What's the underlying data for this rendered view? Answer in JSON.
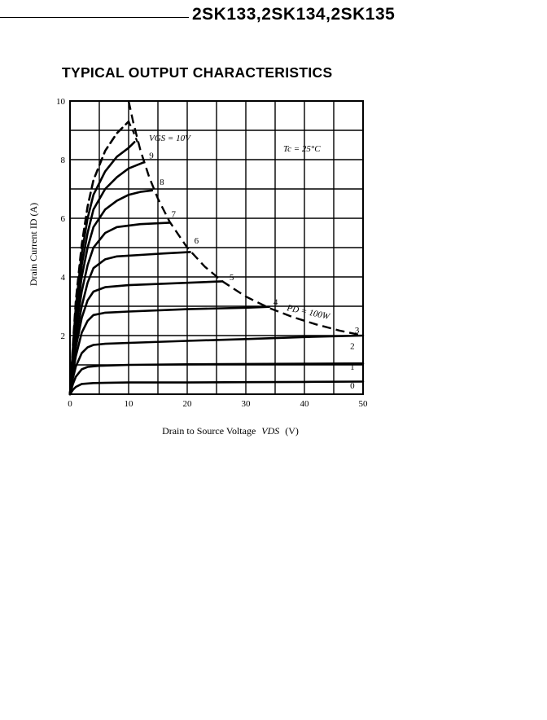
{
  "header": {
    "part_numbers": "2SK133,2SK134,2SK135"
  },
  "chart_data": {
    "type": "line",
    "title": "TYPICAL OUTPUT CHARACTERISTICS",
    "xlabel_main": "Drain to Source Voltage",
    "xlabel_symbol": "VDS",
    "xlabel_unit": "(V)",
    "ylabel": "Drain Current ID (A)",
    "xlim": [
      0,
      50
    ],
    "ylim": [
      0,
      10
    ],
    "x_ticks": [
      "0",
      "10",
      "20",
      "30",
      "40",
      "50"
    ],
    "y_ticks": [
      "2",
      "4",
      "6",
      "8",
      "10"
    ],
    "grid": true,
    "annotations": {
      "temperature": "Tc = 25°C",
      "vgs": "VGS = 10V",
      "power": "PD = 100W"
    },
    "series": [
      {
        "name": "0",
        "points": [
          [
            0,
            0
          ],
          [
            0.5,
            0.15
          ],
          [
            1,
            0.25
          ],
          [
            2,
            0.35
          ],
          [
            4,
            0.38
          ],
          [
            10,
            0.4
          ],
          [
            20,
            0.4
          ],
          [
            30,
            0.41
          ],
          [
            40,
            0.42
          ],
          [
            50,
            0.43
          ]
        ]
      },
      {
        "name": "1",
        "points": [
          [
            0,
            0
          ],
          [
            0.5,
            0.35
          ],
          [
            1,
            0.6
          ],
          [
            2,
            0.85
          ],
          [
            3,
            0.93
          ],
          [
            5,
            0.97
          ],
          [
            10,
            1.0
          ],
          [
            20,
            1.02
          ],
          [
            30,
            1.03
          ],
          [
            40,
            1.04
          ],
          [
            50,
            1.05
          ]
        ]
      },
      {
        "name": "2",
        "points": [
          [
            0,
            0
          ],
          [
            0.5,
            0.55
          ],
          [
            1,
            0.95
          ],
          [
            2,
            1.4
          ],
          [
            3,
            1.6
          ],
          [
            4,
            1.68
          ],
          [
            6,
            1.72
          ],
          [
            10,
            1.75
          ],
          [
            20,
            1.82
          ],
          [
            30,
            1.88
          ],
          [
            40,
            1.95
          ],
          [
            50,
            2.0
          ]
        ]
      },
      {
        "name": "3",
        "points": [
          [
            0,
            0
          ],
          [
            0.5,
            0.75
          ],
          [
            1,
            1.3
          ],
          [
            2,
            2.1
          ],
          [
            3,
            2.5
          ],
          [
            4,
            2.7
          ],
          [
            6,
            2.78
          ],
          [
            10,
            2.82
          ],
          [
            20,
            2.9
          ],
          [
            30,
            2.95
          ],
          [
            34,
            2.98
          ]
        ]
      },
      {
        "name": "4",
        "points": [
          [
            0,
            0
          ],
          [
            0.5,
            0.9
          ],
          [
            1,
            1.6
          ],
          [
            2,
            2.6
          ],
          [
            3,
            3.2
          ],
          [
            4,
            3.5
          ],
          [
            6,
            3.65
          ],
          [
            10,
            3.72
          ],
          [
            20,
            3.8
          ],
          [
            26,
            3.85
          ]
        ]
      },
      {
        "name": "5",
        "points": [
          [
            0,
            0
          ],
          [
            0.5,
            1.05
          ],
          [
            1,
            1.9
          ],
          [
            2,
            3.0
          ],
          [
            3,
            3.8
          ],
          [
            4,
            4.3
          ],
          [
            6,
            4.6
          ],
          [
            8,
            4.7
          ],
          [
            12,
            4.75
          ],
          [
            16,
            4.8
          ],
          [
            20.5,
            4.85
          ]
        ]
      },
      {
        "name": "6",
        "points": [
          [
            0,
            0
          ],
          [
            0.5,
            1.2
          ],
          [
            1,
            2.2
          ],
          [
            2,
            3.5
          ],
          [
            3,
            4.4
          ],
          [
            4,
            5.0
          ],
          [
            6,
            5.5
          ],
          [
            8,
            5.7
          ],
          [
            12,
            5.8
          ],
          [
            17,
            5.85
          ]
        ]
      },
      {
        "name": "7",
        "points": [
          [
            0,
            0
          ],
          [
            0.5,
            1.35
          ],
          [
            1,
            2.5
          ],
          [
            2,
            4.0
          ],
          [
            3,
            5.0
          ],
          [
            4,
            5.7
          ],
          [
            6,
            6.3
          ],
          [
            8,
            6.6
          ],
          [
            10,
            6.8
          ],
          [
            12,
            6.9
          ],
          [
            14,
            6.95
          ]
        ]
      },
      {
        "name": "8",
        "points": [
          [
            0,
            0
          ],
          [
            0.5,
            1.5
          ],
          [
            1,
            2.8
          ],
          [
            2,
            4.4
          ],
          [
            3,
            5.5
          ],
          [
            4,
            6.3
          ],
          [
            6,
            7.0
          ],
          [
            8,
            7.4
          ],
          [
            10,
            7.7
          ],
          [
            12.5,
            7.9
          ]
        ]
      },
      {
        "name": "9",
        "points": [
          [
            0,
            0
          ],
          [
            0.5,
            1.6
          ],
          [
            1,
            3.0
          ],
          [
            2,
            4.8
          ],
          [
            3,
            6.0
          ],
          [
            4,
            6.8
          ],
          [
            6,
            7.6
          ],
          [
            8,
            8.1
          ],
          [
            10,
            8.4
          ],
          [
            11,
            8.6
          ]
        ]
      },
      {
        "name": "10",
        "points": [
          [
            0,
            0
          ],
          [
            0.5,
            1.7
          ],
          [
            1,
            3.2
          ],
          [
            2,
            5.1
          ],
          [
            3,
            6.4
          ],
          [
            4,
            7.3
          ],
          [
            6,
            8.3
          ],
          [
            8,
            8.9
          ],
          [
            10,
            9.3
          ]
        ]
      }
    ],
    "series_labels": [
      {
        "text": "0",
        "x": 47.8,
        "y": 0.3
      },
      {
        "text": "1",
        "x": 47.8,
        "y": 0.95
      },
      {
        "text": "2",
        "x": 47.8,
        "y": 1.65
      },
      {
        "text": "3",
        "x": 48.6,
        "y": 2.2
      },
      {
        "text": "4",
        "x": 34.7,
        "y": 3.15
      },
      {
        "text": "5",
        "x": 27.2,
        "y": 4.0
      },
      {
        "text": "6",
        "x": 21.2,
        "y": 5.25
      },
      {
        "text": "7",
        "x": 17.3,
        "y": 6.15
      },
      {
        "text": "8",
        "x": 15.3,
        "y": 7.25
      },
      {
        "text": "9",
        "x": 13.5,
        "y": 8.15
      }
    ],
    "power_limit_points": [
      [
        10,
        10
      ],
      [
        10.8,
        9.26
      ],
      [
        12,
        8.33
      ],
      [
        13.5,
        7.41
      ],
      [
        15,
        6.67
      ],
      [
        17,
        5.88
      ],
      [
        20,
        5.0
      ],
      [
        23,
        4.35
      ],
      [
        26,
        3.85
      ],
      [
        30,
        3.33
      ],
      [
        34,
        2.94
      ],
      [
        38,
        2.63
      ],
      [
        42,
        2.38
      ],
      [
        46,
        2.17
      ],
      [
        50,
        2.0
      ]
    ],
    "vgs10_dashed": [
      [
        10,
        9.3
      ],
      [
        10.8,
        8.95
      ],
      [
        11.5,
        8.6
      ]
    ]
  }
}
